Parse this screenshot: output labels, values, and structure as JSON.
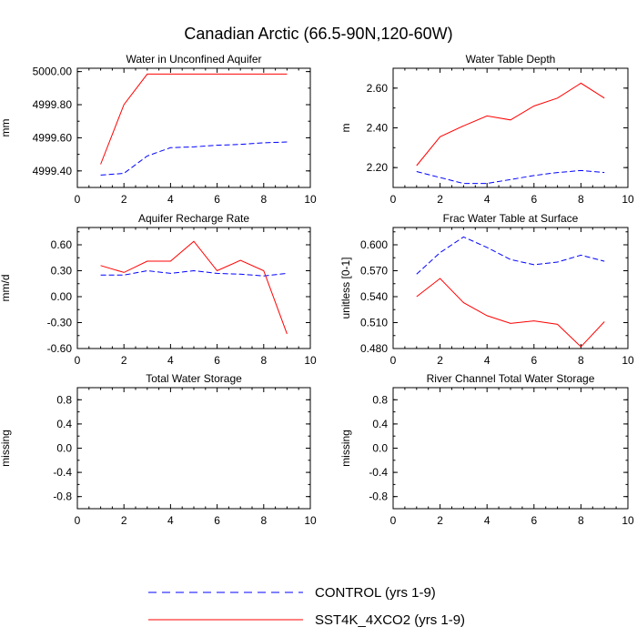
{
  "title": "Canadian Arctic (66.5-90N,120-60W)",
  "series_styles": {
    "control": {
      "color": "#0000ff",
      "dash": "dashed"
    },
    "sst4k": {
      "color": "#ff0000",
      "dash": "solid"
    }
  },
  "legend": {
    "placement": "bottom-center",
    "entries": [
      {
        "key": "control",
        "label": "CONTROL (yrs 1-9)"
      },
      {
        "key": "sst4k",
        "label": "SST4K_4XCO2 (yrs 1-9)"
      }
    ]
  },
  "chart_data": [
    {
      "type": "line",
      "title": "Water in Unconfined Aquifer",
      "ylabel": "mm",
      "xlim": [
        0,
        10
      ],
      "xticks": [
        "0",
        "2",
        "4",
        "6",
        "8",
        "10"
      ],
      "ylim": [
        4999.3,
        5000.02
      ],
      "yticks": [
        4999.4,
        4999.6,
        4999.8,
        5000.0
      ],
      "ytick_labels": [
        "4999.40",
        "4999.60",
        "4999.80",
        "5000.00"
      ],
      "x": [
        1,
        2,
        3,
        4,
        5,
        6,
        7,
        8,
        9
      ],
      "series": [
        {
          "key": "control",
          "name": "CONTROL (yrs 1-9)",
          "values": [
            4999.375,
            4999.385,
            4999.49,
            4999.54,
            4999.545,
            4999.555,
            4999.56,
            4999.57,
            4999.575
          ]
        },
        {
          "key": "sst4k",
          "name": "SST4K_4XCO2 (yrs 1-9)",
          "values": [
            4999.44,
            4999.8,
            4999.985,
            4999.985,
            4999.985,
            4999.985,
            4999.985,
            4999.985,
            4999.985
          ]
        }
      ]
    },
    {
      "type": "line",
      "title": "Water Table Depth",
      "ylabel": "m",
      "xlim": [
        0,
        10
      ],
      "xticks": [
        "0",
        "2",
        "4",
        "6",
        "8",
        "10"
      ],
      "ylim": [
        2.1,
        2.7
      ],
      "yticks": [
        2.2,
        2.4,
        2.6
      ],
      "ytick_labels": [
        "2.20",
        "2.40",
        "2.60"
      ],
      "x": [
        1,
        2,
        3,
        4,
        5,
        6,
        7,
        8,
        9
      ],
      "series": [
        {
          "key": "control",
          "name": "CONTROL (yrs 1-9)",
          "values": [
            2.18,
            2.15,
            2.12,
            2.12,
            2.14,
            2.16,
            2.175,
            2.185,
            2.175
          ]
        },
        {
          "key": "sst4k",
          "name": "SST4K_4XCO2 (yrs 1-9)",
          "values": [
            2.21,
            2.355,
            2.41,
            2.46,
            2.44,
            2.51,
            2.55,
            2.625,
            2.55
          ]
        }
      ]
    },
    {
      "type": "line",
      "title": "Aquifer Recharge Rate",
      "ylabel": "mm/d",
      "xlim": [
        0,
        10
      ],
      "xticks": [
        "0",
        "2",
        "4",
        "6",
        "8",
        "10"
      ],
      "ylim": [
        -0.6,
        0.8
      ],
      "yticks": [
        -0.6,
        -0.3,
        0.0,
        0.3,
        0.6
      ],
      "ytick_labels": [
        "-0.60",
        "-0.30",
        "0.00",
        "0.30",
        "0.60"
      ],
      "x": [
        1,
        2,
        3,
        4,
        5,
        6,
        7,
        8,
        9
      ],
      "series": [
        {
          "key": "control",
          "name": "CONTROL (yrs 1-9)",
          "values": [
            0.25,
            0.25,
            0.3,
            0.27,
            0.3,
            0.27,
            0.26,
            0.24,
            0.27
          ]
        },
        {
          "key": "sst4k",
          "name": "SST4K_4XCO2 (yrs 1-9)",
          "values": [
            0.36,
            0.28,
            0.41,
            0.41,
            0.64,
            0.3,
            0.42,
            0.3,
            -0.43
          ]
        }
      ]
    },
    {
      "type": "line",
      "title": "Frac Water Table at Surface",
      "ylabel": "unitless [0-1]",
      "xlim": [
        0,
        10
      ],
      "xticks": [
        "0",
        "2",
        "4",
        "6",
        "8",
        "10"
      ],
      "ylim": [
        0.48,
        0.62
      ],
      "yticks": [
        0.48,
        0.51,
        0.54,
        0.57,
        0.6
      ],
      "ytick_labels": [
        "0.480",
        "0.510",
        "0.540",
        "0.570",
        "0.600"
      ],
      "x": [
        1,
        2,
        3,
        4,
        5,
        6,
        7,
        8,
        9
      ],
      "series": [
        {
          "key": "control",
          "name": "CONTROL (yrs 1-9)",
          "values": [
            0.566,
            0.591,
            0.609,
            0.597,
            0.583,
            0.577,
            0.58,
            0.588,
            0.581
          ]
        },
        {
          "key": "sst4k",
          "name": "SST4K_4XCO2 (yrs 1-9)",
          "values": [
            0.54,
            0.561,
            0.533,
            0.518,
            0.509,
            0.512,
            0.508,
            0.482,
            0.511
          ]
        }
      ]
    },
    {
      "type": "line",
      "title": "Total Water Storage",
      "ylabel": "missing",
      "xlim": [
        0,
        10
      ],
      "xticks": [
        "0",
        "2",
        "4",
        "6",
        "8",
        "10"
      ],
      "ylim": [
        -1.0,
        1.0
      ],
      "yticks": [
        -0.8,
        -0.4,
        0.0,
        0.4,
        0.8
      ],
      "ytick_labels": [
        "-0.8",
        "-0.4",
        "0.0",
        "0.4",
        "0.8"
      ],
      "x": [],
      "series": []
    },
    {
      "type": "line",
      "title": "River Channel Total Water Storage",
      "ylabel": "missing",
      "xlim": [
        0,
        10
      ],
      "xticks": [
        "0",
        "2",
        "4",
        "6",
        "8",
        "10"
      ],
      "ylim": [
        -1.0,
        1.0
      ],
      "yticks": [
        -0.8,
        -0.4,
        0.0,
        0.4,
        0.8
      ],
      "ytick_labels": [
        "-0.8",
        "-0.4",
        "0.0",
        "0.4",
        "0.8"
      ],
      "x": [],
      "series": []
    }
  ]
}
